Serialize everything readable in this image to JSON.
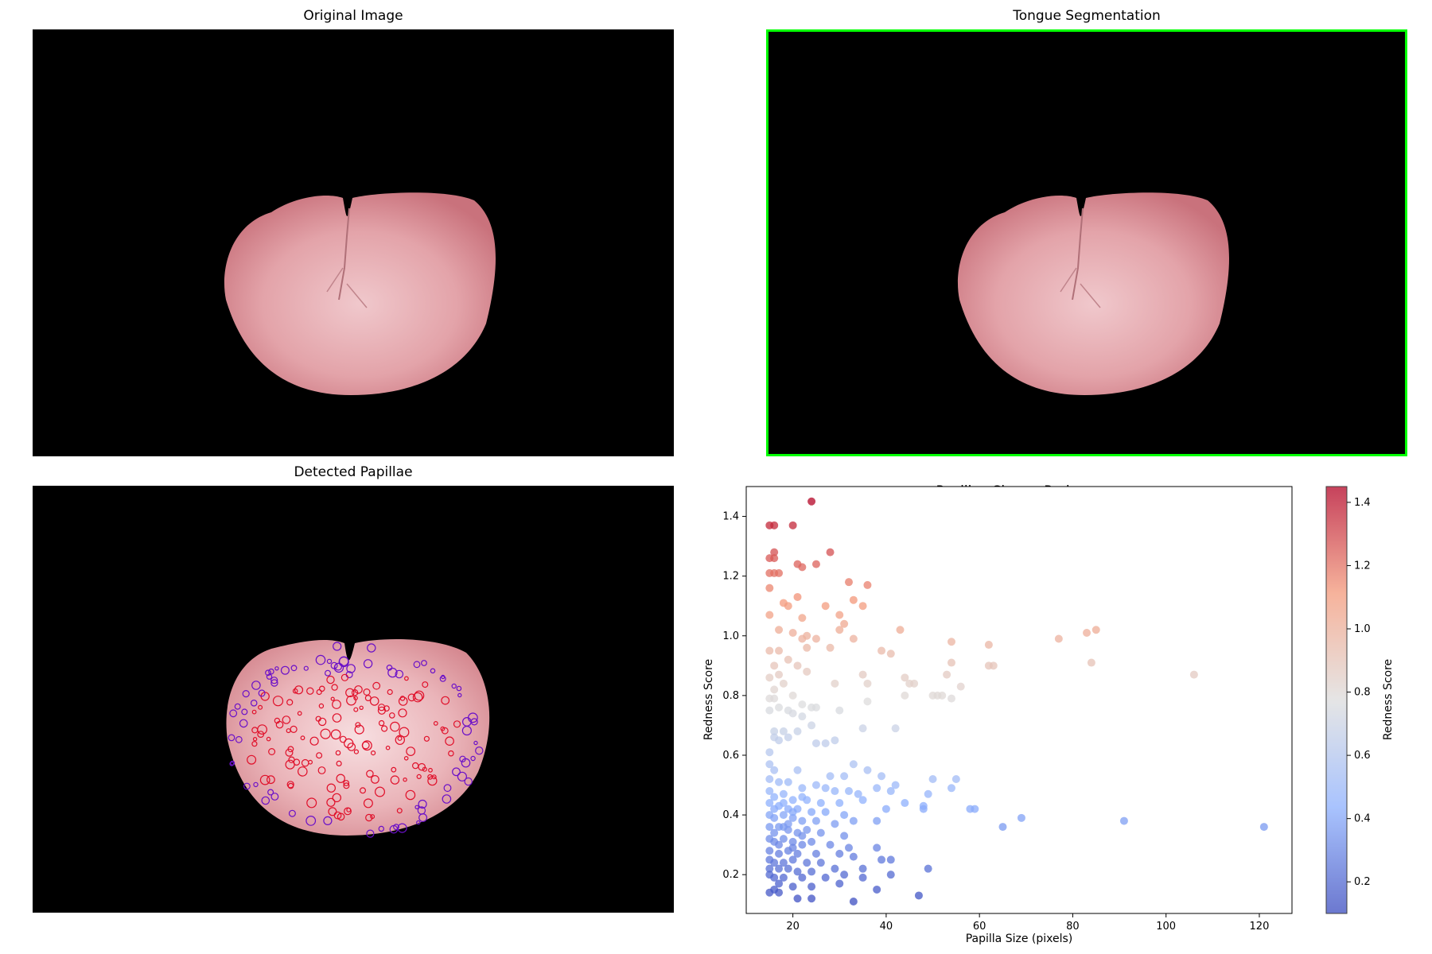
{
  "panels": {
    "original_title": "Original Image",
    "segmentation_title": "Tongue Segmentation",
    "papillae_title": "Detected Papillae",
    "scatter_title": "Papillae Size vs Redness"
  },
  "colors": {
    "segmentation_border": "#00ff00",
    "tongue_fill": "#e7a0a6",
    "papilla_red": "#e0102a",
    "papilla_purple": "#6a10c8"
  },
  "chart_data": {
    "type": "scatter",
    "title": "Papillae Size vs Redness",
    "xlabel": "Papilla Size (pixels)",
    "ylabel": "Redness Score",
    "colorbar_label": "Redness Score",
    "colormap": "coolwarm",
    "xlim": [
      10,
      127
    ],
    "ylim": [
      0.07,
      1.5
    ],
    "xticks": [
      20,
      40,
      60,
      80,
      100,
      120
    ],
    "yticks": [
      0.2,
      0.4,
      0.6,
      0.8,
      1.0,
      1.2,
      1.4
    ],
    "colorbar_ticks": [
      0.2,
      0.4,
      0.6,
      0.8,
      1.0,
      1.2,
      1.4
    ],
    "colorbar_range": [
      0.1,
      1.45
    ],
    "grid": false,
    "points": [
      [
        24,
        1.45
      ],
      [
        15,
        1.37
      ],
      [
        16,
        1.37
      ],
      [
        20,
        1.37
      ],
      [
        16,
        1.28
      ],
      [
        16,
        1.26
      ],
      [
        15,
        1.26
      ],
      [
        28,
        1.28
      ],
      [
        25,
        1.24
      ],
      [
        21,
        1.24
      ],
      [
        22,
        1.23
      ],
      [
        15,
        1.21
      ],
      [
        16,
        1.21
      ],
      [
        17,
        1.21
      ],
      [
        32,
        1.18
      ],
      [
        36,
        1.17
      ],
      [
        15,
        1.16
      ],
      [
        21,
        1.13
      ],
      [
        33,
        1.12
      ],
      [
        35,
        1.1
      ],
      [
        18,
        1.11
      ],
      [
        19,
        1.1
      ],
      [
        27,
        1.1
      ],
      [
        30,
        1.07
      ],
      [
        22,
        1.06
      ],
      [
        15,
        1.07
      ],
      [
        31,
        1.04
      ],
      [
        30,
        1.02
      ],
      [
        43,
        1.02
      ],
      [
        17,
        1.02
      ],
      [
        20,
        1.01
      ],
      [
        25,
        0.99
      ],
      [
        22,
        0.99
      ],
      [
        23,
        1.0
      ],
      [
        33,
        0.99
      ],
      [
        54,
        0.98
      ],
      [
        62,
        0.97
      ],
      [
        77,
        0.99
      ],
      [
        83,
        1.01
      ],
      [
        85,
        1.02
      ],
      [
        39,
        0.95
      ],
      [
        41,
        0.94
      ],
      [
        28,
        0.96
      ],
      [
        23,
        0.96
      ],
      [
        15,
        0.95
      ],
      [
        17,
        0.95
      ],
      [
        19,
        0.92
      ],
      [
        16,
        0.9
      ],
      [
        21,
        0.9
      ],
      [
        54,
        0.91
      ],
      [
        62,
        0.9
      ],
      [
        63,
        0.9
      ],
      [
        84,
        0.91
      ],
      [
        106,
        0.87
      ],
      [
        35,
        0.87
      ],
      [
        44,
        0.86
      ],
      [
        53,
        0.87
      ],
      [
        17,
        0.87
      ],
      [
        15,
        0.86
      ],
      [
        18,
        0.84
      ],
      [
        23,
        0.88
      ],
      [
        29,
        0.84
      ],
      [
        36,
        0.84
      ],
      [
        45,
        0.84
      ],
      [
        46,
        0.84
      ],
      [
        56,
        0.83
      ],
      [
        16,
        0.82
      ],
      [
        20,
        0.8
      ],
      [
        44,
        0.8
      ],
      [
        50,
        0.8
      ],
      [
        51,
        0.8
      ],
      [
        52,
        0.8
      ],
      [
        54,
        0.79
      ],
      [
        15,
        0.79
      ],
      [
        16,
        0.79
      ],
      [
        22,
        0.77
      ],
      [
        24,
        0.76
      ],
      [
        25,
        0.76
      ],
      [
        36,
        0.78
      ],
      [
        17,
        0.76
      ],
      [
        19,
        0.75
      ],
      [
        15,
        0.75
      ],
      [
        20,
        0.74
      ],
      [
        22,
        0.73
      ],
      [
        30,
        0.75
      ],
      [
        24,
        0.7
      ],
      [
        16,
        0.68
      ],
      [
        18,
        0.68
      ],
      [
        21,
        0.68
      ],
      [
        35,
        0.69
      ],
      [
        42,
        0.69
      ],
      [
        16,
        0.66
      ],
      [
        17,
        0.65
      ],
      [
        19,
        0.66
      ],
      [
        25,
        0.64
      ],
      [
        27,
        0.64
      ],
      [
        29,
        0.65
      ],
      [
        15,
        0.61
      ],
      [
        15,
        0.57
      ],
      [
        16,
        0.55
      ],
      [
        21,
        0.55
      ],
      [
        33,
        0.57
      ],
      [
        36,
        0.55
      ],
      [
        28,
        0.53
      ],
      [
        31,
        0.53
      ],
      [
        39,
        0.53
      ],
      [
        42,
        0.5
      ],
      [
        50,
        0.52
      ],
      [
        55,
        0.52
      ],
      [
        15,
        0.52
      ],
      [
        17,
        0.51
      ],
      [
        19,
        0.51
      ],
      [
        22,
        0.49
      ],
      [
        25,
        0.5
      ],
      [
        27,
        0.49
      ],
      [
        29,
        0.48
      ],
      [
        32,
        0.48
      ],
      [
        34,
        0.47
      ],
      [
        38,
        0.49
      ],
      [
        41,
        0.48
      ],
      [
        49,
        0.47
      ],
      [
        54,
        0.49
      ],
      [
        15,
        0.48
      ],
      [
        16,
        0.46
      ],
      [
        18,
        0.47
      ],
      [
        20,
        0.45
      ],
      [
        23,
        0.45
      ],
      [
        26,
        0.44
      ],
      [
        30,
        0.44
      ],
      [
        35,
        0.45
      ],
      [
        44,
        0.44
      ],
      [
        48,
        0.43
      ],
      [
        15,
        0.44
      ],
      [
        17,
        0.43
      ],
      [
        19,
        0.42
      ],
      [
        21,
        0.42
      ],
      [
        24,
        0.41
      ],
      [
        27,
        0.41
      ],
      [
        31,
        0.4
      ],
      [
        40,
        0.42
      ],
      [
        48,
        0.42
      ],
      [
        58,
        0.42
      ],
      [
        59,
        0.42
      ],
      [
        15,
        0.4
      ],
      [
        16,
        0.39
      ],
      [
        18,
        0.4
      ],
      [
        20,
        0.39
      ],
      [
        22,
        0.38
      ],
      [
        25,
        0.38
      ],
      [
        29,
        0.37
      ],
      [
        33,
        0.38
      ],
      [
        38,
        0.38
      ],
      [
        65,
        0.36
      ],
      [
        69,
        0.39
      ],
      [
        91,
        0.38
      ],
      [
        121,
        0.36
      ],
      [
        15,
        0.36
      ],
      [
        17,
        0.36
      ],
      [
        19,
        0.35
      ],
      [
        21,
        0.34
      ],
      [
        23,
        0.35
      ],
      [
        26,
        0.34
      ],
      [
        31,
        0.33
      ],
      [
        15,
        0.32
      ],
      [
        16,
        0.31
      ],
      [
        18,
        0.32
      ],
      [
        20,
        0.31
      ],
      [
        22,
        0.3
      ],
      [
        24,
        0.31
      ],
      [
        28,
        0.3
      ],
      [
        32,
        0.29
      ],
      [
        38,
        0.29
      ],
      [
        15,
        0.28
      ],
      [
        17,
        0.27
      ],
      [
        19,
        0.28
      ],
      [
        21,
        0.27
      ],
      [
        25,
        0.27
      ],
      [
        30,
        0.27
      ],
      [
        15,
        0.25
      ],
      [
        16,
        0.24
      ],
      [
        18,
        0.24
      ],
      [
        20,
        0.25
      ],
      [
        23,
        0.24
      ],
      [
        26,
        0.24
      ],
      [
        33,
        0.26
      ],
      [
        39,
        0.25
      ],
      [
        41,
        0.25
      ],
      [
        15,
        0.22
      ],
      [
        17,
        0.22
      ],
      [
        19,
        0.22
      ],
      [
        21,
        0.21
      ],
      [
        24,
        0.21
      ],
      [
        29,
        0.22
      ],
      [
        35,
        0.22
      ],
      [
        49,
        0.22
      ],
      [
        15,
        0.2
      ],
      [
        16,
        0.19
      ],
      [
        18,
        0.19
      ],
      [
        22,
        0.19
      ],
      [
        27,
        0.19
      ],
      [
        31,
        0.2
      ],
      [
        35,
        0.19
      ],
      [
        41,
        0.2
      ],
      [
        17,
        0.17
      ],
      [
        20,
        0.16
      ],
      [
        24,
        0.16
      ],
      [
        30,
        0.17
      ],
      [
        16,
        0.15
      ],
      [
        15,
        0.14
      ],
      [
        17,
        0.14
      ],
      [
        21,
        0.12
      ],
      [
        24,
        0.12
      ],
      [
        33,
        0.11
      ],
      [
        38,
        0.15
      ],
      [
        47,
        0.13
      ],
      [
        20,
        0.29
      ],
      [
        22,
        0.33
      ],
      [
        17,
        0.3
      ],
      [
        19,
        0.37
      ],
      [
        16,
        0.34
      ],
      [
        18,
        0.36
      ],
      [
        20,
        0.41
      ],
      [
        22,
        0.46
      ],
      [
        18,
        0.44
      ],
      [
        16,
        0.42
      ]
    ]
  }
}
